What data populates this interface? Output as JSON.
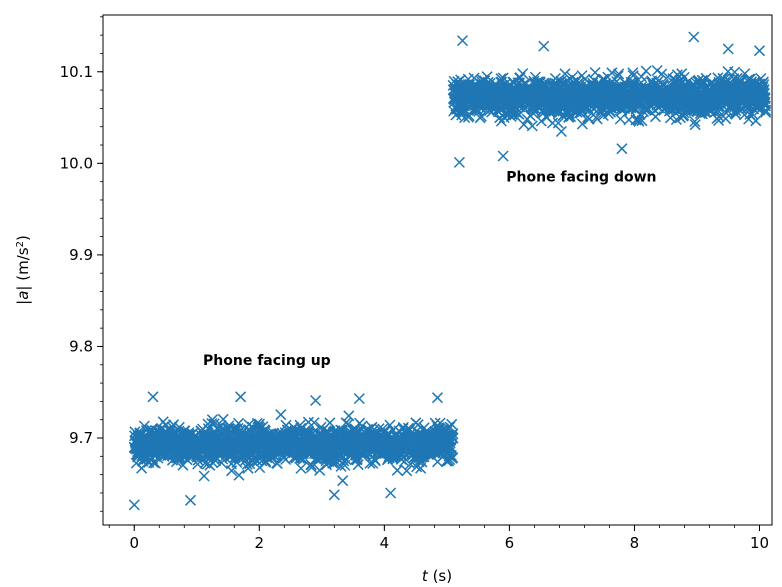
{
  "chart_data": {
    "type": "scatter",
    "title": "",
    "xlabel_var": "t",
    "xlabel_unit": " (s)",
    "ylabel_prefix": "|",
    "ylabel_var": "a",
    "ylabel_mid": "| (m/s",
    "ylabel_sup": "2",
    "ylabel_suffix": ")",
    "xlim": [
      -0.5,
      10.2
    ],
    "ylim": [
      9.605,
      10.162
    ],
    "xticks": [
      0,
      2,
      4,
      6,
      8,
      10
    ],
    "xtick_labels": [
      "0",
      "2",
      "4",
      "6",
      "8",
      "10"
    ],
    "yticks": [
      9.7,
      9.8,
      9.9,
      10.0,
      10.1
    ],
    "ytick_labels": [
      "9.7",
      "9.8",
      "9.9",
      "10.0",
      "10.1"
    ],
    "grid": false,
    "marker": "x",
    "color": "#1f77b4",
    "series": [
      {
        "t_range": [
          0,
          5.1
        ],
        "mean": 9.693,
        "spread": 0.018,
        "outliers": [
          [
            0.0,
            9.627
          ],
          [
            0.9,
            9.632
          ],
          [
            1.7,
            9.745
          ],
          [
            0.3,
            9.745
          ],
          [
            3.6,
            9.743
          ],
          [
            4.85,
            9.744
          ],
          [
            2.9,
            9.741
          ],
          [
            3.2,
            9.638
          ],
          [
            4.1,
            9.64
          ]
        ]
      },
      {
        "t_range": [
          5.1,
          10.1
        ],
        "mean": 10.072,
        "spread": 0.018,
        "outliers": [
          [
            5.2,
            10.001
          ],
          [
            5.25,
            10.134
          ],
          [
            8.95,
            10.138
          ],
          [
            6.55,
            10.128
          ],
          [
            9.5,
            10.125
          ],
          [
            5.9,
            10.008
          ],
          [
            7.8,
            10.016
          ],
          [
            10.0,
            10.123
          ]
        ]
      }
    ],
    "annotations": [
      {
        "text": "Phone facing up",
        "x": 1.1,
        "y": 9.78
      },
      {
        "text": "Phone facing down",
        "x": 5.95,
        "y": 9.98
      }
    ]
  }
}
